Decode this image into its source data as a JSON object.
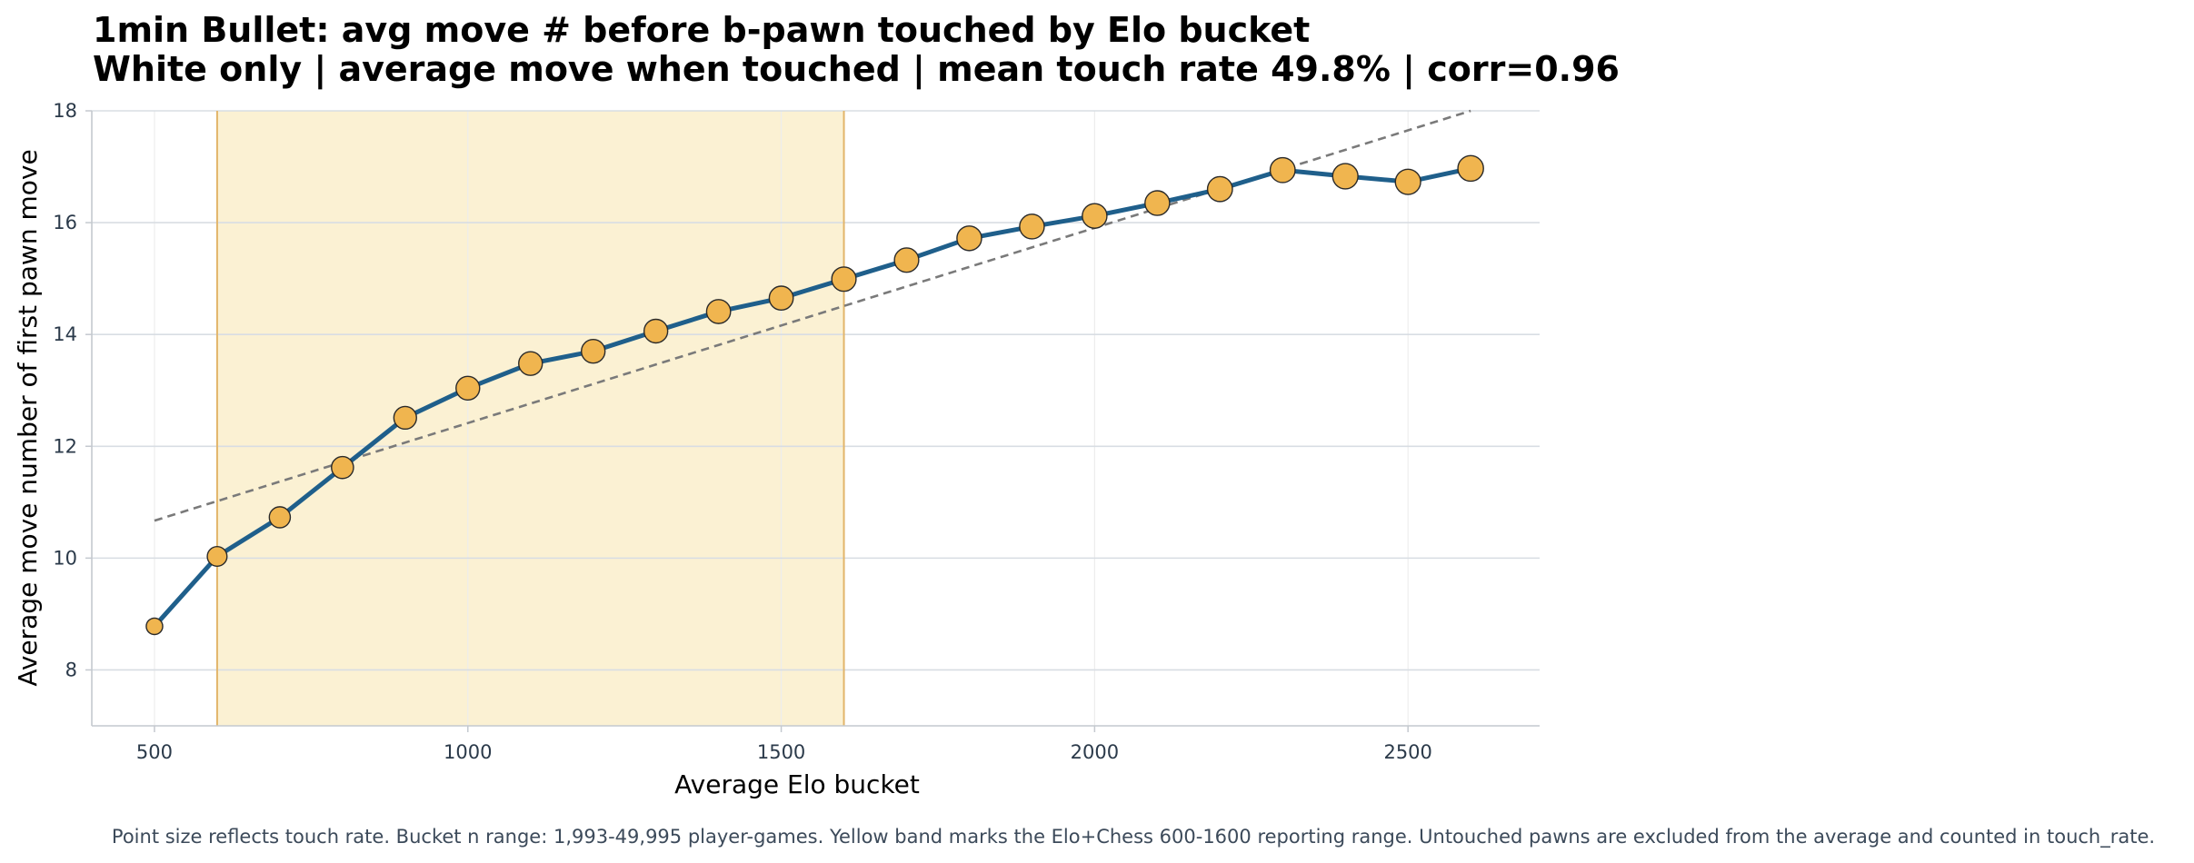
{
  "chart_data": {
    "type": "line",
    "title_line1": "1min Bullet: avg move # before b-pawn touched by Elo bucket",
    "title_line2": "White only | average move when touched | mean touch rate 49.8% | corr=0.96",
    "xlabel": "Average Elo bucket",
    "ylabel": "Average move number of first pawn move",
    "xlim": [
      400,
      2710
    ],
    "ylim": [
      7,
      18
    ],
    "xticks": [
      500,
      1000,
      1500,
      2000,
      2500
    ],
    "yticks": [
      8,
      10,
      12,
      14,
      16,
      18
    ],
    "grid": true,
    "highlight_band": {
      "x_start": 600,
      "x_end": 1600
    },
    "series": [
      {
        "x": [
          500,
          600,
          700,
          800,
          900,
          1000,
          1100,
          1200,
          1300,
          1400,
          1500,
          1600,
          1700,
          1800,
          1900,
          2000,
          2100,
          2200,
          2300,
          2400,
          2500,
          2600
        ],
        "y": [
          8.78,
          10.03,
          10.73,
          11.62,
          12.51,
          13.04,
          13.48,
          13.7,
          14.06,
          14.41,
          14.65,
          14.99,
          15.33,
          15.72,
          15.93,
          16.12,
          16.35,
          16.6,
          16.94,
          16.83,
          16.73,
          16.97
        ],
        "touch_rate": [
          0.28,
          0.38,
          0.42,
          0.45,
          0.47,
          0.5,
          0.5,
          0.5,
          0.5,
          0.51,
          0.51,
          0.52,
          0.52,
          0.53,
          0.53,
          0.53,
          0.53,
          0.54,
          0.54,
          0.55,
          0.55,
          0.56
        ]
      }
    ],
    "trendline": {
      "x": [
        500,
        2600
      ],
      "y": [
        10.67,
        18.0
      ]
    },
    "caption": "Point size reflects touch rate. Bucket n range: 1,993-49,995 player-games. Yellow band marks the Elo+Chess 600-1600 reporting range. Untouched pawns are excluded from the average and counted in touch_rate.",
    "colors": {
      "line": "#1f5f8b",
      "marker_fill": "#f0b54f",
      "marker_edge": "#2a2a2a",
      "band_fill": "#fbf1d3",
      "band_edge": "#e2b56a",
      "trend": "#7a7a7a",
      "grid": "#d8dde3"
    }
  }
}
